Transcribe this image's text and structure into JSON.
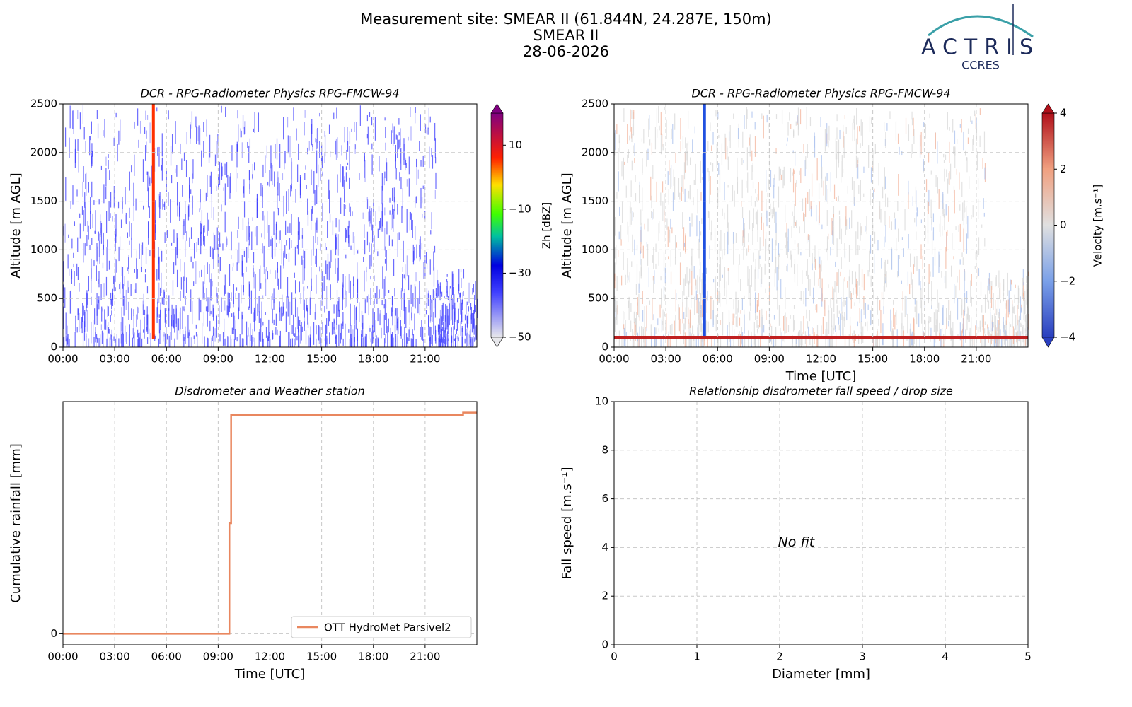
{
  "header": {
    "title": "Measurement site: SMEAR II (61.844N, 24.287E, 150m)",
    "site": "SMEAR II",
    "date": "28-06-2026"
  },
  "logo": {
    "name": "ACTRIS",
    "sub": "CCRES"
  },
  "chart_data": [
    {
      "type": "heatmap",
      "title": "DCR - RPG-Radiometer Physics RPG-FMCW-94",
      "ylabel": "Altitude [m AGL]",
      "xlim": [
        0,
        24
      ],
      "xticks": [
        {
          "value": 0,
          "label": "00:00"
        },
        {
          "value": 3,
          "label": "03:00"
        },
        {
          "value": 6,
          "label": "06:00"
        },
        {
          "value": 9,
          "label": "09:00"
        },
        {
          "value": 12,
          "label": "12:00"
        },
        {
          "value": 15,
          "label": "15:00"
        },
        {
          "value": 18,
          "label": "18:00"
        },
        {
          "value": 21,
          "label": "21:00"
        }
      ],
      "ylim": [
        0,
        2500
      ],
      "yticks": [
        0,
        500,
        1000,
        1500,
        2000,
        2500
      ],
      "grid": true,
      "colorbar_label": "Zh [dBZ]",
      "clim": [
        -50,
        20
      ],
      "cticks": [
        {
          "value": -50,
          "label": "−50"
        },
        {
          "value": -30,
          "label": "−30"
        },
        {
          "value": -10,
          "label": "−10"
        },
        10
      ]
    },
    {
      "type": "heatmap",
      "title": "DCR - RPG-Radiometer Physics RPG-FMCW-94",
      "ylabel": "Altitude [m AGL]",
      "xlabel": "Time [UTC]",
      "xlim": [
        0,
        24
      ],
      "xticks": [
        {
          "value": 0,
          "label": "00:00"
        },
        {
          "value": 3,
          "label": "03:00"
        },
        {
          "value": 6,
          "label": "06:00"
        },
        {
          "value": 9,
          "label": "09:00"
        },
        {
          "value": 12,
          "label": "12:00"
        },
        {
          "value": 15,
          "label": "15:00"
        },
        {
          "value": 18,
          "label": "18:00"
        },
        {
          "value": 21,
          "label": "21:00"
        }
      ],
      "ylim": [
        0,
        2500
      ],
      "yticks": [
        0,
        500,
        1000,
        1500,
        2000,
        2500
      ],
      "grid": true,
      "colorbar_label": "Velocity [m.s⁻¹]",
      "clim": [
        -4,
        4
      ],
      "cticks": [
        {
          "value": -4,
          "label": "−4"
        },
        {
          "value": -2,
          "label": "−2"
        },
        0,
        2,
        4
      ]
    },
    {
      "type": "line",
      "title": "Disdrometer and Weather station",
      "ylabel": "Cumulative rainfall [mm]",
      "xlabel": "Time [UTC]",
      "xlim": [
        0,
        24
      ],
      "xticks": [
        {
          "value": 0,
          "label": "00:00"
        },
        {
          "value": 3,
          "label": "03:00"
        },
        {
          "value": 6,
          "label": "06:00"
        },
        {
          "value": 9,
          "label": "09:00"
        },
        {
          "value": 12,
          "label": "12:00"
        },
        {
          "value": 15,
          "label": "15:00"
        },
        {
          "value": 18,
          "label": "18:00"
        },
        {
          "value": 21,
          "label": "21:00"
        }
      ],
      "ylim": [
        -0.05,
        1.05
      ],
      "yticks": [
        0
      ],
      "grid": true,
      "legend": "lower right",
      "x": [
        0,
        9.65,
        9.65,
        9.75,
        9.75,
        23.2,
        23.2,
        24
      ],
      "series": [
        {
          "name": "OTT HydroMet Parsivel2",
          "color": "#e9875f",
          "values": [
            0,
            0,
            0.5,
            0.5,
            0.99,
            0.99,
            1.0,
            1.0
          ]
        }
      ]
    },
    {
      "type": "scatter",
      "title": "Relationship disdrometer fall speed / drop size",
      "ylabel": "Fall speed [m.s⁻¹]",
      "xlabel": "Diameter [mm]",
      "xlim": [
        0,
        5
      ],
      "xticks": [
        0,
        1,
        2,
        3,
        4,
        5
      ],
      "ylim": [
        0,
        10
      ],
      "yticks": [
        0,
        2,
        4,
        6,
        8,
        10
      ],
      "grid": true,
      "annotation": "No fit"
    }
  ]
}
